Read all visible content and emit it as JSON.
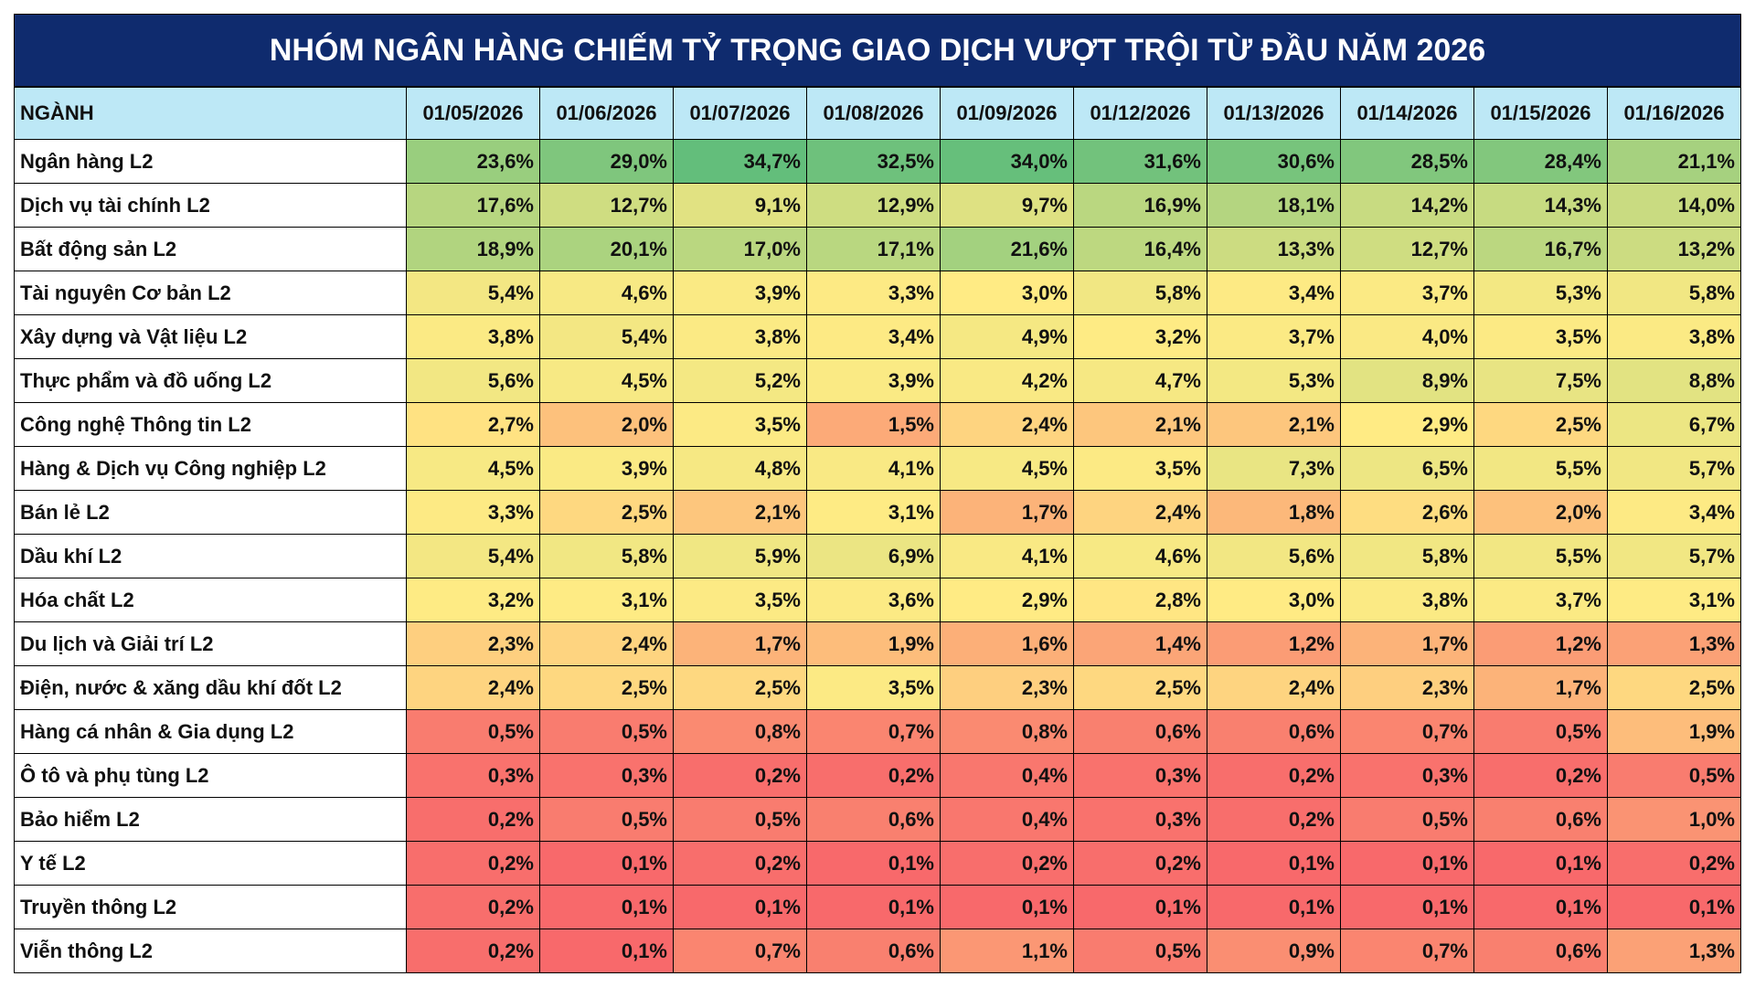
{
  "header": {
    "title": "NHÓM NGÂN HÀNG CHIẾM TỶ TRỌNG GIAO DỊCH VƯỢT TRỘI TỪ ĐẦU NĂM 2026"
  },
  "table": {
    "columns": [
      "NGÀNH",
      "01/05/2026",
      "01/06/2026",
      "01/07/2026",
      "01/08/2026",
      "01/09/2026",
      "01/12/2026",
      "01/13/2026",
      "01/14/2026",
      "01/15/2026",
      "01/16/2026"
    ],
    "rows": [
      {
        "label": "Ngân hàng L2",
        "cells": [
          "23,6%",
          "29,0%",
          "34,7%",
          "32,5%",
          "34,0%",
          "31,6%",
          "30,6%",
          "28,5%",
          "28,4%",
          "21,1%"
        ]
      },
      {
        "label": "Dịch vụ tài chính L2",
        "cells": [
          "17,6%",
          "12,7%",
          "9,1%",
          "12,9%",
          "9,7%",
          "16,9%",
          "18,1%",
          "14,2%",
          "14,3%",
          "14,0%"
        ]
      },
      {
        "label": "Bất động sản L2",
        "cells": [
          "18,9%",
          "20,1%",
          "17,0%",
          "17,1%",
          "21,6%",
          "16,4%",
          "13,3%",
          "12,7%",
          "16,7%",
          "13,2%"
        ]
      },
      {
        "label": "Tài nguyên Cơ bản L2",
        "cells": [
          "5,4%",
          "4,6%",
          "3,9%",
          "3,3%",
          "3,0%",
          "5,8%",
          "3,4%",
          "3,7%",
          "5,3%",
          "5,8%"
        ]
      },
      {
        "label": "Xây dựng và Vật liệu L2",
        "cells": [
          "3,8%",
          "5,4%",
          "3,8%",
          "3,4%",
          "4,9%",
          "3,2%",
          "3,7%",
          "4,0%",
          "3,5%",
          "3,8%"
        ]
      },
      {
        "label": "Thực phẩm và đồ uống L2",
        "cells": [
          "5,6%",
          "4,5%",
          "5,2%",
          "3,9%",
          "4,2%",
          "4,7%",
          "5,3%",
          "8,9%",
          "7,5%",
          "8,8%"
        ]
      },
      {
        "label": "Công nghệ Thông tin L2",
        "cells": [
          "2,7%",
          "2,0%",
          "3,5%",
          "1,5%",
          "2,4%",
          "2,1%",
          "2,1%",
          "2,9%",
          "2,5%",
          "6,7%"
        ]
      },
      {
        "label": "Hàng & Dịch vụ Công nghiệp L2",
        "cells": [
          "4,5%",
          "3,9%",
          "4,8%",
          "4,1%",
          "4,5%",
          "3,5%",
          "7,3%",
          "6,5%",
          "5,5%",
          "5,7%"
        ]
      },
      {
        "label": "Bán lẻ L2",
        "cells": [
          "3,3%",
          "2,5%",
          "2,1%",
          "3,1%",
          "1,7%",
          "2,4%",
          "1,8%",
          "2,6%",
          "2,0%",
          "3,4%"
        ]
      },
      {
        "label": "Dầu khí L2",
        "cells": [
          "5,4%",
          "5,8%",
          "5,9%",
          "6,9%",
          "4,1%",
          "4,6%",
          "5,6%",
          "5,8%",
          "5,5%",
          "5,7%"
        ]
      },
      {
        "label": "Hóa chất L2",
        "cells": [
          "3,2%",
          "3,1%",
          "3,5%",
          "3,6%",
          "2,9%",
          "2,8%",
          "3,0%",
          "3,8%",
          "3,7%",
          "3,1%"
        ]
      },
      {
        "label": "Du lịch và Giải trí L2",
        "cells": [
          "2,3%",
          "2,4%",
          "1,7%",
          "1,9%",
          "1,6%",
          "1,4%",
          "1,2%",
          "1,7%",
          "1,2%",
          "1,3%"
        ]
      },
      {
        "label": "Điện, nước & xăng dầu khí đốt L2",
        "cells": [
          "2,4%",
          "2,5%",
          "2,5%",
          "3,5%",
          "2,3%",
          "2,5%",
          "2,4%",
          "2,3%",
          "1,7%",
          "2,5%"
        ]
      },
      {
        "label": "Hàng cá nhân & Gia dụng L2",
        "cells": [
          "0,5%",
          "0,5%",
          "0,8%",
          "0,7%",
          "0,8%",
          "0,6%",
          "0,6%",
          "0,7%",
          "0,5%",
          "1,9%"
        ]
      },
      {
        "label": "Ô tô và phụ tùng L2",
        "cells": [
          "0,3%",
          "0,3%",
          "0,2%",
          "0,2%",
          "0,4%",
          "0,3%",
          "0,2%",
          "0,3%",
          "0,2%",
          "0,5%"
        ]
      },
      {
        "label": "Bảo hiểm L2",
        "cells": [
          "0,2%",
          "0,5%",
          "0,5%",
          "0,6%",
          "0,4%",
          "0,3%",
          "0,2%",
          "0,5%",
          "0,6%",
          "1,0%"
        ]
      },
      {
        "label": "Y tế L2",
        "cells": [
          "0,2%",
          "0,1%",
          "0,2%",
          "0,1%",
          "0,2%",
          "0,2%",
          "0,1%",
          "0,1%",
          "0,1%",
          "0,2%"
        ]
      },
      {
        "label": "Truyền thông L2",
        "cells": [
          "0,2%",
          "0,1%",
          "0,1%",
          "0,1%",
          "0,1%",
          "0,1%",
          "0,1%",
          "0,1%",
          "0,1%",
          "0,1%"
        ]
      },
      {
        "label": "Viễn thông L2",
        "cells": [
          "0,2%",
          "0,1%",
          "0,7%",
          "0,6%",
          "1,1%",
          "0,5%",
          "0,9%",
          "0,7%",
          "0,6%",
          "1,3%"
        ]
      }
    ]
  }
}
